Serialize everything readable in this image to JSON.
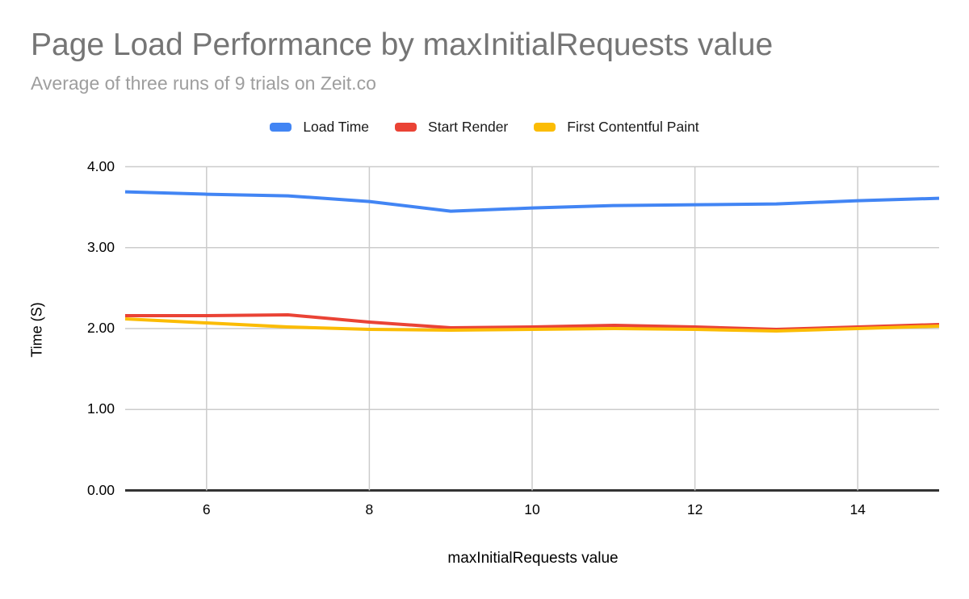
{
  "title": "Page Load Performance by maxInitialRequests value",
  "subtitle": "Average of three runs of 9 trials on Zeit.co",
  "chart_data": {
    "type": "line",
    "title": "Page Load Performance by maxInitialRequests value",
    "subtitle": "Average of three runs of 9 trials on Zeit.co",
    "xlabel": "maxInitialRequests value",
    "ylabel": "Time (S)",
    "x": [
      5,
      6,
      7,
      8,
      9,
      10,
      11,
      12,
      13,
      14,
      15
    ],
    "series": [
      {
        "name": "Load Time",
        "color": "#4285F4",
        "values": [
          3.69,
          3.66,
          3.64,
          3.57,
          3.45,
          3.49,
          3.52,
          3.53,
          3.54,
          3.58,
          3.61
        ]
      },
      {
        "name": "Start Render",
        "color": "#EA4335",
        "values": [
          2.16,
          2.16,
          2.17,
          2.08,
          2.01,
          2.02,
          2.04,
          2.02,
          1.99,
          2.02,
          2.05
        ]
      },
      {
        "name": "First Contentful Paint",
        "color": "#FBBC04",
        "values": [
          2.12,
          2.07,
          2.02,
          1.99,
          1.98,
          1.99,
          2.0,
          1.99,
          1.97,
          2.0,
          2.03
        ]
      }
    ],
    "xlim": [
      5,
      15
    ],
    "ylim": [
      0,
      4
    ],
    "x_ticks": [
      {
        "value": 6,
        "label": "6"
      },
      {
        "value": 8,
        "label": "8"
      },
      {
        "value": 10,
        "label": "10"
      },
      {
        "value": 12,
        "label": "12"
      },
      {
        "value": 14,
        "label": "14"
      }
    ],
    "y_ticks": [
      {
        "value": 0,
        "label": "0.00"
      },
      {
        "value": 1,
        "label": "1.00"
      },
      {
        "value": 2,
        "label": "2.00"
      },
      {
        "value": 3,
        "label": "3.00"
      },
      {
        "value": 4,
        "label": "4.00"
      }
    ],
    "grid": true,
    "legend_position": "top",
    "background": "#ffffff",
    "colors": {
      "gridline": "#cccccc",
      "baseline": "#333333",
      "axis_text": "#000000",
      "title_text": "#757575",
      "subtitle_text": "#9e9e9e",
      "line_width": 4
    }
  }
}
